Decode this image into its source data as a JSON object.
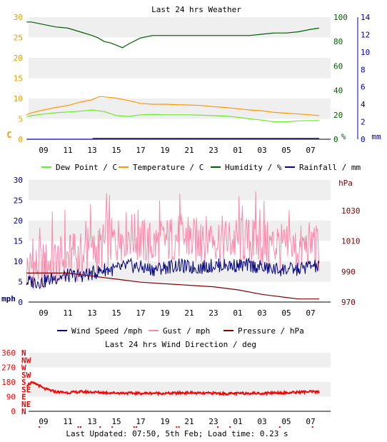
{
  "chart_data": [
    {
      "type": "line",
      "title": "Last 24 hrs Weather",
      "x_ticks": [
        "09",
        "11",
        "13",
        "15",
        "17",
        "19",
        "21",
        "23",
        "01",
        "03",
        "05",
        "07"
      ],
      "y_left": {
        "label": "C",
        "range": [
          0,
          30
        ],
        "ticks": [
          "0",
          "5",
          "10",
          "15",
          "20",
          "25",
          "30"
        ],
        "color": "#e8a000"
      },
      "y_right1": {
        "label": "%",
        "range": [
          0,
          100
        ],
        "ticks": [
          "0",
          "20",
          "40",
          "60",
          "80",
          "100"
        ],
        "color": "#006000"
      },
      "y_right2": {
        "label": "mm",
        "range": [
          0,
          14
        ],
        "ticks": [
          "0",
          "2",
          "4",
          "6",
          "8",
          "10",
          "12",
          "14"
        ],
        "color": "#0000b0"
      },
      "series": [
        {
          "name": "Dew Point / C",
          "color": "#66ee22",
          "axis": "left",
          "x": [
            7.6,
            8,
            9,
            10,
            11,
            12,
            13,
            14,
            15,
            16,
            17,
            18,
            19,
            20,
            21,
            22,
            23,
            24,
            25,
            26,
            27,
            28,
            29,
            30,
            31,
            31.7
          ],
          "values": [
            5.5,
            5.8,
            6.2,
            6.5,
            6.7,
            6.9,
            7.2,
            6.8,
            5.8,
            5.6,
            6,
            6.1,
            6,
            6,
            6,
            5.9,
            5.8,
            5.7,
            5.4,
            5,
            4.7,
            4.3,
            4.3,
            4.5,
            4.6,
            4.6
          ]
        },
        {
          "name": "Temperature / C",
          "color": "#ff9900",
          "axis": "left",
          "x": [
            7.6,
            8,
            9,
            10,
            11,
            12,
            13,
            13.6,
            14,
            15,
            16,
            17,
            18,
            19,
            20,
            21,
            22,
            23,
            24,
            25,
            26,
            27,
            28,
            29,
            30,
            31,
            31.7
          ],
          "values": [
            6,
            6.5,
            7.2,
            7.8,
            8.3,
            9.1,
            9.7,
            10.5,
            10.4,
            10.1,
            9.5,
            8.8,
            8.6,
            8.6,
            8.5,
            8.4,
            8.3,
            8,
            7.8,
            7.5,
            7.2,
            7,
            6.6,
            6.4,
            6.2,
            6,
            5.8
          ]
        },
        {
          "name": "Humidity / %",
          "color": "#006000",
          "axis": "right1",
          "x": [
            7.6,
            8,
            9,
            10,
            11,
            12,
            13,
            13.5,
            14,
            14.5,
            15,
            15.5,
            16,
            17,
            18,
            19,
            20,
            21,
            22,
            23,
            24,
            25,
            26,
            27,
            28,
            29,
            30,
            31,
            31.7
          ],
          "values": [
            96,
            96,
            94,
            92,
            91,
            88,
            85,
            83,
            80,
            79,
            77,
            75,
            78,
            83,
            85,
            85,
            85,
            85,
            85,
            85,
            85,
            85,
            85,
            86,
            87,
            87,
            88,
            90,
            91
          ]
        },
        {
          "name": "Rainfall / mm",
          "color": "#0000b0",
          "axis": "right2",
          "x": [
            7.6,
            13,
            13.1,
            31.7
          ],
          "values": [
            0,
            0,
            0.1,
            0.1
          ]
        }
      ]
    },
    {
      "type": "line",
      "x_ticks": [
        "09",
        "11",
        "13",
        "15",
        "17",
        "19",
        "21",
        "23",
        "01",
        "03",
        "05",
        "07"
      ],
      "y_left": {
        "label": "mph",
        "range": [
          0,
          30
        ],
        "ticks": [
          "0",
          "5",
          "10",
          "15",
          "20",
          "25",
          "30"
        ],
        "color": "#000080"
      },
      "y_right": {
        "label": "hPa",
        "range": [
          970,
          1050
        ],
        "ticks": [
          "970",
          "990",
          "1010",
          "1030"
        ],
        "color": "#800000"
      },
      "series": [
        {
          "name": "Wind Speed /mph",
          "color": "#000080",
          "axis": "left",
          "x": [
            7.6,
            9,
            10,
            11,
            12,
            13,
            14,
            15,
            16,
            17,
            18,
            19,
            20,
            21,
            22,
            23,
            24,
            25,
            26,
            27,
            28,
            29,
            30,
            31,
            31.7
          ],
          "values": [
            5,
            5,
            6,
            6.5,
            6.5,
            7,
            8,
            8,
            9,
            8.5,
            8,
            8.5,
            9,
            8.5,
            8.5,
            9,
            9,
            9,
            9,
            8.5,
            8,
            8,
            8,
            9,
            8.5
          ]
        },
        {
          "name": "Gust / mph",
          "color": "#ff88aa",
          "axis": "left",
          "x": [
            7.6,
            9,
            10,
            11,
            12,
            13,
            14,
            15,
            16,
            17,
            18,
            19,
            20,
            21,
            22,
            23,
            24,
            25,
            26,
            27,
            28,
            29,
            30,
            31,
            31.7
          ],
          "values": [
            8,
            9,
            10,
            11,
            11,
            12,
            14,
            15,
            17,
            15,
            14,
            15,
            16,
            15,
            15,
            16,
            15,
            15,
            15,
            14,
            14,
            13,
            13,
            14,
            13
          ]
        },
        {
          "name": "Pressure / hPa",
          "color": "#800000",
          "axis": "right",
          "x": [
            7.6,
            9,
            11,
            13,
            15,
            17,
            19,
            21,
            23,
            25,
            27,
            29,
            30,
            31.7
          ],
          "values": [
            989,
            989,
            989,
            987,
            985,
            983,
            982,
            981,
            980,
            978,
            975,
            973,
            972,
            972
          ]
        }
      ]
    },
    {
      "type": "scatter",
      "title": "Last 24 hrs Wind Direction / deg",
      "x_ticks": [
        "09",
        "11",
        "13",
        "15",
        "17",
        "19",
        "21",
        "23",
        "01",
        "03",
        "05",
        "07"
      ],
      "y_left_ticks": [
        "360",
        "270",
        "180",
        "90",
        "0"
      ],
      "y_compass_ticks": [
        "N",
        "NW",
        "W",
        "SW",
        "S",
        "SE",
        "E",
        "NE",
        "N"
      ],
      "series": [
        {
          "name": "Wind Direction",
          "color": "#ff0000",
          "x": [
            7.6,
            8,
            8.5,
            9,
            9.5,
            10,
            11,
            12,
            13,
            14,
            15,
            16,
            17,
            18,
            19,
            20,
            21,
            22,
            23,
            24,
            25,
            26,
            27,
            28,
            29,
            30,
            31,
            31.7
          ],
          "values": [
            160,
            175,
            165,
            140,
            130,
            120,
            115,
            120,
            118,
            115,
            113,
            112,
            110,
            112,
            110,
            112,
            115,
            110,
            112,
            108,
            110,
            112,
            110,
            115,
            113,
            118,
            120,
            118
          ]
        }
      ]
    }
  ],
  "footer": "Last Updated: 07:50, 5th Feb; Load time: 0.23 s"
}
